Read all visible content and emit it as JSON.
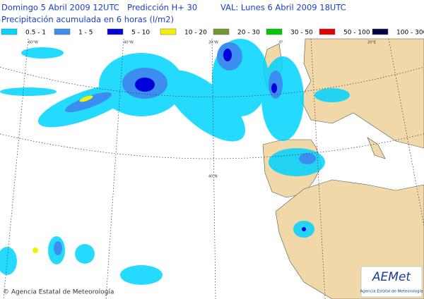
{
  "header": {
    "run": "Domingo 5 Abril 2009 12UTC",
    "forecast": "Predicción H+ 30",
    "valid": "VAL: Lunes 6 Abril 2009 18UTC",
    "title": "Precipitación acumulada en 6 horas (l/m2)"
  },
  "legend": [
    {
      "label": "0.5 - 1",
      "color": "#00d4ff"
    },
    {
      "label": "1 - 5",
      "color": "#3b8ef0"
    },
    {
      "label": "5 - 10",
      "color": "#0000dc"
    },
    {
      "label": "10 - 20",
      "color": "#f5f000"
    },
    {
      "label": "20 - 30",
      "color": "#6e9a30"
    },
    {
      "label": "30 - 50",
      "color": "#00c800"
    },
    {
      "label": "50 - 100",
      "color": "#e00000"
    },
    {
      "label": "100 - 300",
      "color": "#000040"
    }
  ],
  "graticule": [
    "60°W",
    "40°W",
    "20°W",
    "0°",
    "20°E",
    "40°N"
  ],
  "footer": "© Agencia Estatal de Meteorología",
  "logo": {
    "name": "AEMet",
    "subtitle": "Agencia Estatal de Meteorología"
  }
}
